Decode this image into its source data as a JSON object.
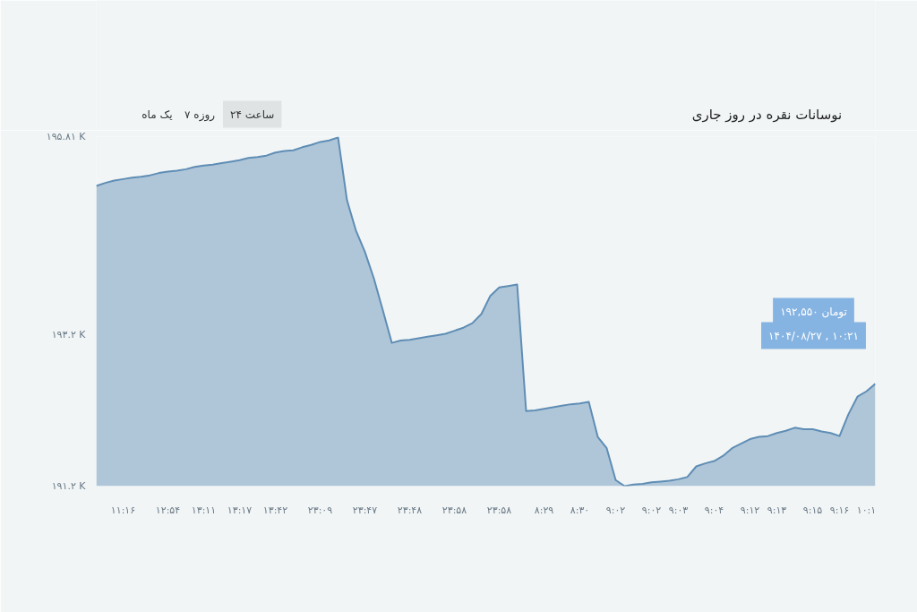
{
  "chart_data": {
    "type": "area",
    "title": "نوسانات نقره در روز جاری",
    "categories": [
      null,
      null,
      null,
      "۱۱:۱۶",
      null,
      null,
      null,
      null,
      "۱۲:۵۴",
      null,
      null,
      null,
      "۱۳:۱۱",
      null,
      null,
      null,
      "۱۳:۱۷",
      null,
      null,
      null,
      "۱۳:۴۲",
      null,
      null,
      null,
      null,
      "۲۳:۰۹",
      null,
      null,
      null,
      null,
      "۲۳:۴۷",
      null,
      null,
      null,
      null,
      "۲۳:۴۸",
      null,
      null,
      null,
      null,
      "۲۳:۵۸",
      null,
      null,
      null,
      null,
      "۲۳:۵۸",
      null,
      null,
      null,
      null,
      "۸:۲۹",
      null,
      null,
      null,
      "۸:۳۰",
      null,
      null,
      null,
      "۹:۰۲",
      null,
      null,
      null,
      "۹:۰۲",
      null,
      null,
      "۹:۰۳",
      null,
      null,
      null,
      "۹:۰۴",
      null,
      null,
      null,
      "۹:۱۲",
      null,
      null,
      "۹:۱۳",
      null,
      null,
      null,
      "۹:۱۵",
      null,
      null,
      "۹:۱۶",
      null,
      null,
      "۱۰:۱",
      null
    ],
    "series": [
      {
        "color": "#5f8db5",
        "values": [
          195.16,
          195.2,
          195.23,
          195.25,
          195.27,
          195.28,
          195.3,
          195.33,
          195.35,
          195.36,
          195.38,
          195.41,
          195.43,
          195.44,
          195.46,
          195.48,
          195.5,
          195.53,
          195.54,
          195.56,
          195.6,
          195.62,
          195.63,
          195.67,
          195.7,
          195.74,
          195.76,
          195.8,
          194.97,
          194.57,
          194.29,
          193.94,
          193.52,
          193.09,
          193.12,
          193.13,
          193.15,
          193.17,
          193.19,
          193.21,
          193.25,
          193.29,
          193.35,
          193.47,
          193.71,
          193.82,
          193.84,
          193.86,
          192.19,
          192.2,
          192.22,
          192.24,
          192.26,
          192.28,
          192.29,
          192.31,
          191.85,
          191.7,
          191.28,
          191.2,
          191.22,
          191.23,
          191.25,
          191.26,
          191.27,
          191.29,
          191.32,
          191.46,
          191.5,
          191.53,
          191.6,
          191.7,
          191.76,
          191.82,
          191.85,
          191.86,
          191.9,
          191.93,
          191.97,
          191.95,
          191.95,
          191.92,
          191.9,
          191.86,
          192.15,
          192.38,
          192.45,
          192.55
        ]
      }
    ],
    "ylim": [
      191.2,
      195.81
    ],
    "yticks": [
      {
        "value": 191.2,
        "label": "۱۹۱.۲ K"
      },
      {
        "value": 193.2,
        "label": "۱۹۳.۲ K"
      },
      {
        "value": 195.81,
        "label": "۱۹۵.۸۱ K"
      }
    ],
    "grid": false,
    "marker": "none",
    "line_style": "solid",
    "annotations": [
      "یک ماه",
      "۷ روزه",
      "۲۴ ساعت",
      "۱۹۲,۵۵۰ تومان",
      "۱۴۰۴/۰۸/۲۷ , ۱۰:۲۱"
    ]
  }
}
